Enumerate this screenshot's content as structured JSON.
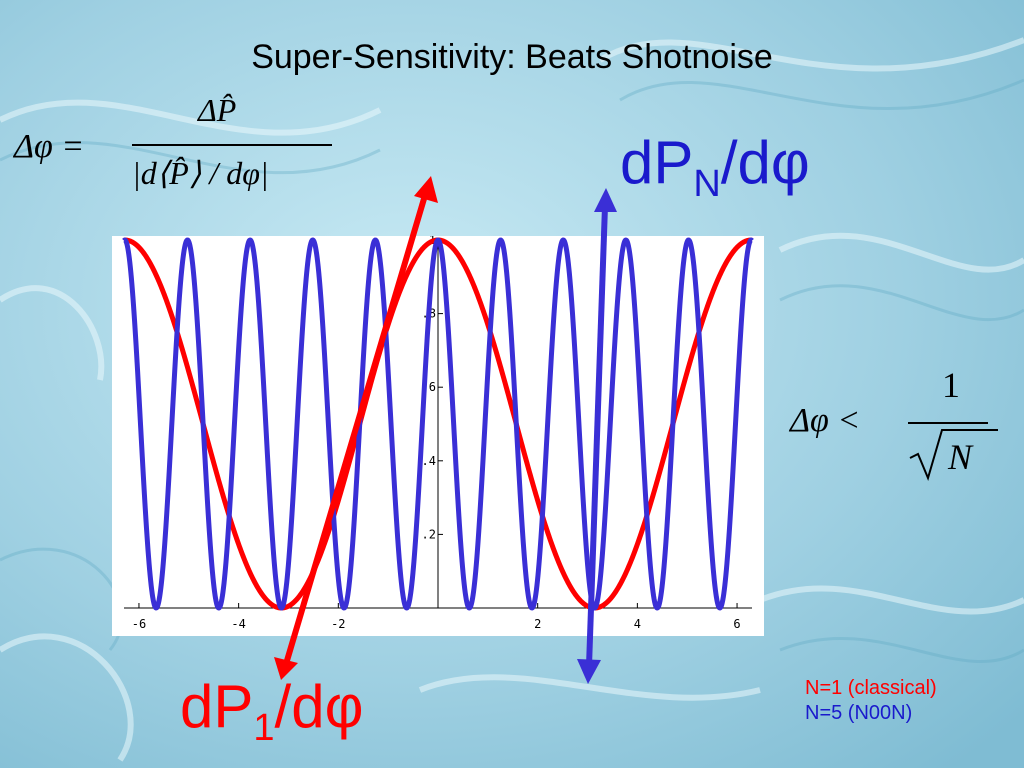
{
  "slide": {
    "title": "Super-Sensitivity: Beats Shotnoise"
  },
  "equations": {
    "main_lhs": "Δφ =",
    "main_numerator": "ΔP̂",
    "main_denominator": "|d⟨P̂⟩ / dφ|",
    "bound_lhs": "Δφ <",
    "bound_numerator": "1",
    "bound_denominator": "N"
  },
  "labels": {
    "dPN_main": "dP",
    "dPN_sub": "N",
    "dPN_tail": "/dφ",
    "dP1_main": "dP",
    "dP1_sub": "1",
    "dP1_tail": "/dφ"
  },
  "legend": {
    "items": [
      {
        "text": "N=1 (classical)",
        "color": "#ff0000"
      },
      {
        "text": "N=5 (N00N)",
        "color": "#1a1acc"
      }
    ]
  },
  "colors": {
    "red": "#ff0000",
    "blue": "#3a2fd6"
  },
  "chart_data": {
    "type": "line",
    "title": "",
    "xlabel": "",
    "ylabel": "",
    "xlim": [
      -6.3,
      6.3
    ],
    "ylim": [
      0,
      1
    ],
    "x_ticks": [
      -6,
      -4,
      -2,
      2,
      4,
      6
    ],
    "y_ticks": [
      0.2,
      0.4,
      0.6,
      0.8,
      1
    ],
    "y_tick_labels": [
      ".2",
      ".4",
      ".6",
      ".8",
      "1"
    ],
    "x_tick_labels": [
      "-6",
      "-4",
      "-2",
      "2",
      "4",
      "6"
    ],
    "series": [
      {
        "name": "N=1 (classical)",
        "function": "cos^2(phi/2)",
        "N": 1,
        "color": "#ff0000"
      },
      {
        "name": "N=5 (N00N)",
        "function": "cos^2(5*phi/2)",
        "N": 5,
        "color": "#3a2fd6"
      }
    ],
    "grid": false
  }
}
